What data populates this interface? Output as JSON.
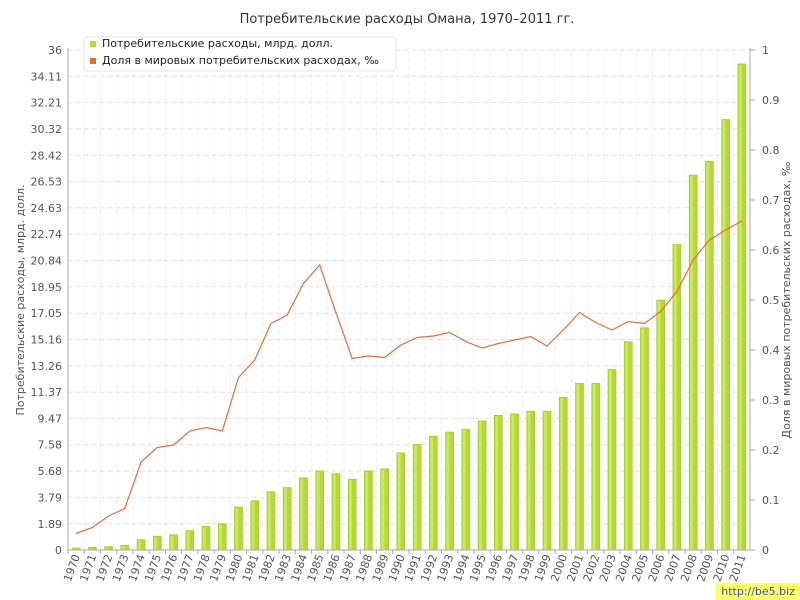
{
  "chart_data": {
    "type": "bar+line",
    "title": "Потребительские расходы Омана, 1970–2011 гг.",
    "ylabel_left": "Потребительские расходы, млрд. долл.",
    "ylabel_right": "Доля в мировых потребительских расходах, ‰",
    "ylim_left": [
      0,
      36
    ],
    "ylim_right": [
      0,
      1
    ],
    "yticks_left": [
      "0",
      "1.89",
      "3.79",
      "5.68",
      "7.58",
      "9.47",
      "11.37",
      "13.26",
      "15.16",
      "17.05",
      "18.95",
      "20.84",
      "22.74",
      "24.63",
      "26.53",
      "28.42",
      "30.32",
      "32.21",
      "34.11",
      "36"
    ],
    "yticks_right": [
      "0",
      "0.1",
      "0.2",
      "0.3",
      "0.4",
      "0.5",
      "0.6",
      "0.7",
      "0.8",
      "0.9",
      "1"
    ],
    "categories": [
      "1970",
      "1971",
      "1972",
      "1973",
      "1974",
      "1975",
      "1976",
      "1977",
      "1978",
      "1979",
      "1980",
      "1981",
      "1982",
      "1983",
      "1984",
      "1985",
      "1986",
      "1987",
      "1988",
      "1989",
      "1990",
      "1991",
      "1992",
      "1993",
      "1994",
      "1995",
      "1996",
      "1997",
      "1998",
      "1999",
      "2000",
      "2001",
      "2002",
      "2003",
      "2004",
      "2005",
      "2006",
      "2007",
      "2008",
      "2009",
      "2010",
      "2011"
    ],
    "legend_position": "top-left",
    "series": [
      {
        "name": "Потребительские расходы, млрд. долл.",
        "kind": "bar",
        "axis": "left",
        "color": "#b5d932",
        "values": [
          0.15,
          0.2,
          0.25,
          0.35,
          0.75,
          1.0,
          1.1,
          1.4,
          1.7,
          1.9,
          3.1,
          3.55,
          4.2,
          4.5,
          5.2,
          5.7,
          5.5,
          5.1,
          5.7,
          5.85,
          7.0,
          7.6,
          8.2,
          8.5,
          8.7,
          9.3,
          9.7,
          9.8,
          10.0,
          10.0,
          11.0,
          12.0,
          12.0,
          13.0,
          15.0,
          16.0,
          18.0,
          22.0,
          27.0,
          28.0,
          31.0,
          35.0
        ]
      },
      {
        "name": "Доля в мировых потребительских расходах, ‰",
        "kind": "line",
        "axis": "right",
        "color": "#e0703a",
        "values": [
          0.033,
          0.045,
          0.068,
          0.083,
          0.176,
          0.205,
          0.21,
          0.238,
          0.245,
          0.238,
          0.345,
          0.38,
          0.453,
          0.47,
          0.533,
          0.57,
          0.475,
          0.383,
          0.388,
          0.385,
          0.41,
          0.425,
          0.428,
          0.435,
          0.417,
          0.404,
          0.413,
          0.42,
          0.427,
          0.408,
          0.44,
          0.475,
          0.455,
          0.44,
          0.457,
          0.453,
          0.477,
          0.517,
          0.58,
          0.62,
          0.64,
          0.658
        ]
      }
    ]
  },
  "watermark": "http://be5.biz"
}
